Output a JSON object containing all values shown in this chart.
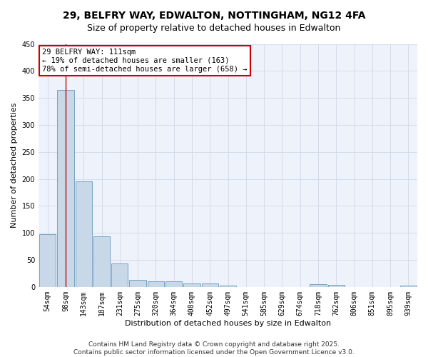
{
  "title": "29, BELFRY WAY, EDWALTON, NOTTINGHAM, NG12 4FA",
  "subtitle": "Size of property relative to detached houses in Edwalton",
  "xlabel": "Distribution of detached houses by size in Edwalton",
  "ylabel": "Number of detached properties",
  "categories": [
    "54sqm",
    "98sqm",
    "143sqm",
    "187sqm",
    "231sqm",
    "275sqm",
    "320sqm",
    "364sqm",
    "408sqm",
    "452sqm",
    "497sqm",
    "541sqm",
    "585sqm",
    "629sqm",
    "674sqm",
    "718sqm",
    "762sqm",
    "806sqm",
    "851sqm",
    "895sqm",
    "939sqm"
  ],
  "values": [
    97,
    365,
    196,
    93,
    44,
    13,
    10,
    10,
    6,
    6,
    3,
    0,
    0,
    0,
    0,
    5,
    4,
    0,
    0,
    0,
    3
  ],
  "bar_color": "#c8d8e8",
  "bar_edge_color": "#6699bb",
  "grid_color": "#d0d8e8",
  "background_color": "#eef2fa",
  "red_line_x": 1.0,
  "annotation_line1": "29 BELFRY WAY: 111sqm",
  "annotation_line2": "← 19% of detached houses are smaller (163)",
  "annotation_line3": "78% of semi-detached houses are larger (658) →",
  "ylim": [
    0,
    450
  ],
  "yticks": [
    0,
    50,
    100,
    150,
    200,
    250,
    300,
    350,
    400,
    450
  ],
  "footer": "Contains HM Land Registry data © Crown copyright and database right 2025.\nContains public sector information licensed under the Open Government Licence v3.0.",
  "title_fontsize": 10,
  "subtitle_fontsize": 9,
  "axis_label_fontsize": 8,
  "tick_fontsize": 7,
  "annotation_fontsize": 7.5,
  "footer_fontsize": 6.5
}
